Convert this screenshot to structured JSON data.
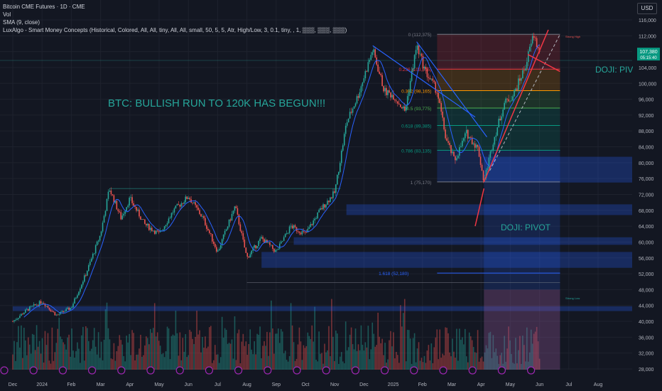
{
  "legend": {
    "title": "Bitcoin CME Futures · 1D · CME",
    "vol": "Vol",
    "sma": "SMA (9, close)",
    "luxalgo": "LuxAlgo - Smart Money Concepts (Historical, Colored, All, All, tiny, All, All, small, 50, 5, 5, Atr, High/Low, 3, 0.1, tiny, , 1, ▒▒▒, ▒▒▒, ▒▒▒)"
  },
  "currency": "USD",
  "price_tags": {
    "last": "107,380",
    "countdown": "05:15:40"
  },
  "colors": {
    "background": "#131722",
    "up": "#26a69a",
    "down": "#ef5350",
    "sma": "#2962ff",
    "fib": "#089981",
    "annotation": "#26a69a",
    "arrow": "#f23645"
  },
  "annotations": {
    "headline": "BTC: BULLISH RUN TO 120K HAS BEGUN!!!",
    "doji_top": "DOJI: PIVOT",
    "doji_bottom": "DOJI: PIVOT",
    "strong_high": "Strong High",
    "strong_low": "Strong Low"
  },
  "chart_data": {
    "type": "candlestick",
    "title": "Bitcoin CME Futures · 1D · CME",
    "ylim": [
      28000,
      117000
    ],
    "y_ticks": [
      28000,
      32000,
      36000,
      40000,
      44000,
      48000,
      52000,
      56000,
      60000,
      64000,
      68000,
      72000,
      76000,
      80000,
      84000,
      88000,
      92000,
      96000,
      100000,
      104000,
      108000,
      112000,
      116000
    ],
    "y_tick_labels": [
      "28,000",
      "32,000",
      "36,000",
      "40,000",
      "44,000",
      "48,000",
      "52,000",
      "56,000",
      "60,000",
      "64,000",
      "68,000",
      "72,000",
      "76,000",
      "80,000",
      "84,000",
      "88,000",
      "92,000",
      "96,000",
      "100,000",
      "104,000",
      "108,000",
      "112,000",
      "116,000"
    ],
    "x_labels": [
      "Dec",
      "2024",
      "Feb",
      "Mar",
      "Apr",
      "May",
      "Jun",
      "Jul",
      "Aug",
      "Sep",
      "Oct",
      "Nov",
      "Dec",
      "2025",
      "Feb",
      "Mar",
      "Apr",
      "May",
      "Jun",
      "Jul",
      "Aug"
    ],
    "grid": true,
    "price_path": [
      {
        "month": 0,
        "price": 40000
      },
      {
        "month": 0.5,
        "price": 43000
      },
      {
        "month": 1,
        "price": 45000
      },
      {
        "month": 1.5,
        "price": 41500
      },
      {
        "month": 2,
        "price": 43500
      },
      {
        "month": 2.5,
        "price": 52000
      },
      {
        "month": 3,
        "price": 62000
      },
      {
        "month": 3.3,
        "price": 73500
      },
      {
        "month": 3.7,
        "price": 66000
      },
      {
        "month": 4,
        "price": 71000
      },
      {
        "month": 4.5,
        "price": 64500
      },
      {
        "month": 5,
        "price": 62000
      },
      {
        "month": 5.5,
        "price": 68000
      },
      {
        "month": 6,
        "price": 71500
      },
      {
        "month": 6.5,
        "price": 66000
      },
      {
        "month": 7,
        "price": 57500
      },
      {
        "month": 7.6,
        "price": 69000
      },
      {
        "month": 8,
        "price": 56000
      },
      {
        "month": 8.5,
        "price": 61000
      },
      {
        "month": 9,
        "price": 57500
      },
      {
        "month": 9.5,
        "price": 64000
      },
      {
        "month": 10,
        "price": 62000
      },
      {
        "month": 10.5,
        "price": 68000
      },
      {
        "month": 11,
        "price": 72500
      },
      {
        "month": 11.4,
        "price": 90000
      },
      {
        "month": 11.8,
        "price": 97000
      },
      {
        "month": 12.3,
        "price": 108500
      },
      {
        "month": 12.7,
        "price": 98000
      },
      {
        "month": 13,
        "price": 97000
      },
      {
        "month": 13.4,
        "price": 93000
      },
      {
        "month": 13.8,
        "price": 109500
      },
      {
        "month": 14.1,
        "price": 103000
      },
      {
        "month": 14.5,
        "price": 98000
      },
      {
        "month": 14.8,
        "price": 86000
      },
      {
        "month": 15.1,
        "price": 80500
      },
      {
        "month": 15.5,
        "price": 87500
      },
      {
        "month": 15.9,
        "price": 83500
      },
      {
        "month": 16.1,
        "price": 75170
      },
      {
        "month": 16.4,
        "price": 85000
      },
      {
        "month": 16.8,
        "price": 95000
      },
      {
        "month": 17.1,
        "price": 97000
      },
      {
        "month": 17.5,
        "price": 104000
      },
      {
        "month": 17.8,
        "price": 112375
      },
      {
        "month": 18.0,
        "price": 107380
      }
    ],
    "fibonacci": [
      {
        "level": "0",
        "price": 112375,
        "label": "0 (112,375)"
      },
      {
        "level": "0.236",
        "price": 103595,
        "label": "0.236 (103,595)"
      },
      {
        "level": "0.382",
        "price": 98165,
        "label": "0.382 (98,165)"
      },
      {
        "level": "0.5",
        "price": 93775,
        "label": "0.5 (93,775)"
      },
      {
        "level": "0.618",
        "price": 89385,
        "label": "0.618 (89,385)"
      },
      {
        "level": "0.786",
        "price": 83135,
        "label": "0.786 (83,135)"
      },
      {
        "level": "1",
        "price": 75170,
        "label": "1 (75,170)"
      },
      {
        "level": "1.618",
        "price": 52180,
        "label": "1.618 (52,180)"
      }
    ],
    "demand_zones": [
      {
        "from_month": 11.4,
        "low": 66800,
        "high": 69500
      },
      {
        "from_month": 9.6,
        "low": 59300,
        "high": 61200
      },
      {
        "from_month": 8.5,
        "low": 53500,
        "high": 57500
      },
      {
        "from_month": 16.1,
        "low": 75000,
        "high": 81500
      },
      {
        "from_month": 0,
        "low": 42600,
        "high": 43800
      }
    ]
  }
}
